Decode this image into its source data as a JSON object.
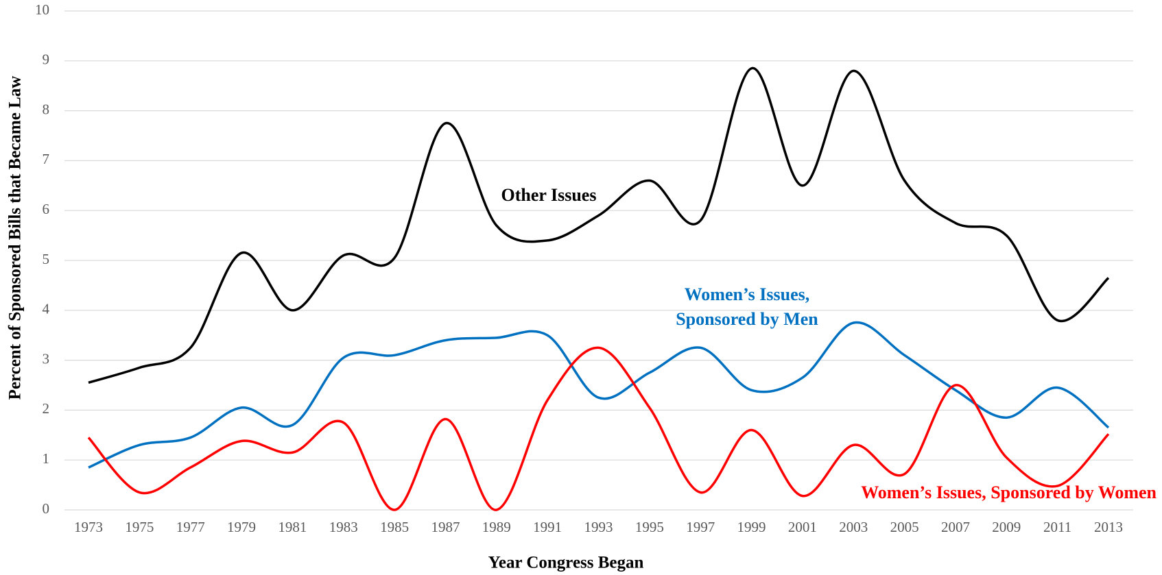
{
  "chart_data": {
    "type": "line",
    "x_label": "Year Congress Began",
    "y_label": "Percent of Sponsored Bills that Became Law",
    "categories": [
      "1973",
      "1975",
      "1977",
      "1979",
      "1981",
      "1983",
      "1985",
      "1987",
      "1989",
      "1991",
      "1993",
      "1995",
      "1997",
      "1999",
      "2001",
      "2003",
      "2005",
      "2007",
      "2009",
      "2011",
      "2013"
    ],
    "series": [
      {
        "name": "Other Issues",
        "color": "#000000",
        "values": [
          2.55,
          2.85,
          3.25,
          5.15,
          4.0,
          5.1,
          5.05,
          7.75,
          5.7,
          5.4,
          5.9,
          6.6,
          5.8,
          8.85,
          6.5,
          8.8,
          6.6,
          5.75,
          5.5,
          3.8,
          4.65
        ]
      },
      {
        "name": "Women’s Issues, Sponsored by Men",
        "color": "#0070c0",
        "values": [
          0.85,
          1.3,
          1.45,
          2.05,
          1.7,
          3.05,
          3.1,
          3.4,
          3.45,
          3.5,
          2.25,
          2.75,
          3.25,
          2.4,
          2.65,
          3.75,
          3.1,
          2.4,
          1.85,
          2.45,
          1.65
        ]
      },
      {
        "name": "Women’s Issues, Sponsored by Women",
        "color": "#ff0000",
        "values": [
          1.45,
          0.35,
          0.85,
          1.38,
          1.15,
          1.75,
          0.0,
          1.82,
          0.0,
          2.2,
          3.25,
          2.05,
          0.35,
          1.6,
          0.28,
          1.3,
          0.72,
          2.5,
          1.05,
          0.48,
          1.52
        ]
      }
    ],
    "ylim": [
      0,
      10
    ],
    "yticks": [
      0,
      1,
      2,
      3,
      4,
      5,
      6,
      7,
      8,
      9,
      10
    ],
    "grid": true,
    "smooth": true
  }
}
